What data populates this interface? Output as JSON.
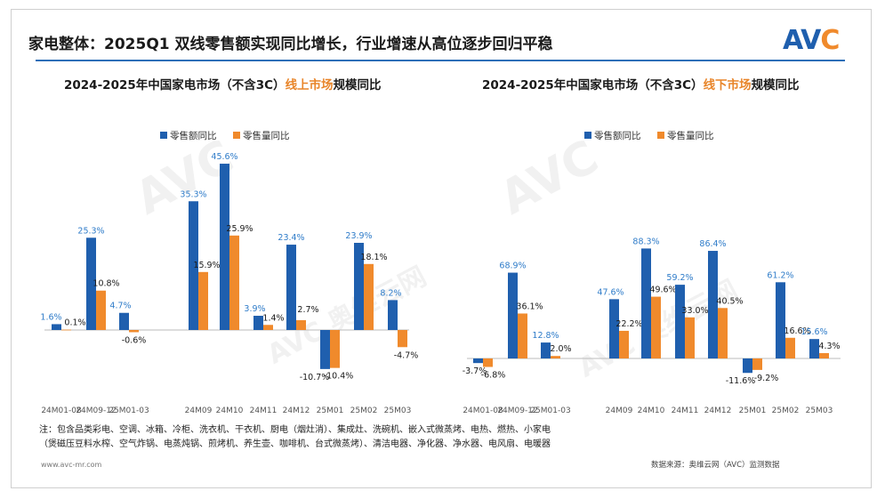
{
  "header": {
    "title": "家电整体：2025Q1 双线零售额实现同比增长，行业增速从高位逐步回归平稳",
    "logo_main": "AV",
    "logo_accent": "C"
  },
  "charts": {
    "left_title_a": "2024-2025年中国家电市场（不含3C）",
    "left_title_b": "线上市场",
    "left_title_c": "规模同比",
    "right_title_a": "2024-2025年中国家电市场（不含3C）",
    "right_title_b": "线下市场",
    "right_title_c": "规模同比"
  },
  "colors": {
    "value": "#1f5fae",
    "volume": "#f08a2c",
    "value_label": "#2f7cc9",
    "neg_label": "#1a1a1a"
  },
  "chart_data": [
    {
      "type": "bar",
      "title": "2024-2025年中国家电市场（不含3C）线上市场规模同比",
      "categories": [
        "24M01-08",
        "24M09-12",
        "25M01-03",
        "24M09",
        "24M10",
        "24M11",
        "24M12",
        "25M01",
        "25M02",
        "25M03"
      ],
      "series": [
        {
          "name": "零售额同比",
          "values": [
            1.6,
            25.3,
            4.7,
            35.3,
            45.6,
            3.9,
            23.4,
            -10.7,
            23.9,
            8.2
          ]
        },
        {
          "name": "零售量同比",
          "values": [
            0.1,
            10.8,
            -0.6,
            15.9,
            25.9,
            1.4,
            2.7,
            -10.4,
            18.1,
            -4.7
          ]
        }
      ],
      "value_labels": [
        [
          "1.6%",
          "25.3%",
          "4.7%",
          "35.3%",
          "45.6%",
          "3.9%",
          "23.4%",
          "-10.7%",
          "23.9%",
          "8.2%"
        ],
        [
          "0.1%",
          "10.8%",
          "-0.6%",
          "15.9%",
          "25.9%",
          "1.4%",
          "2.7%",
          "-10.4%",
          "18.1%",
          "-4.7%"
        ]
      ],
      "legend_position": "top-left",
      "grid": false
    },
    {
      "type": "bar",
      "title": "2024-2025年中国家电市场（不含3C）线下市场规模同比",
      "categories": [
        "24M01-08",
        "24M09-12",
        "25M01-03",
        "24M09",
        "24M10",
        "24M11",
        "24M12",
        "25M01",
        "25M02",
        "25M03"
      ],
      "series": [
        {
          "name": "零售额同比",
          "values": [
            -3.7,
            68.9,
            12.8,
            47.6,
            88.3,
            59.2,
            86.4,
            -11.6,
            61.2,
            15.6
          ]
        },
        {
          "name": "零售量同比",
          "values": [
            -6.8,
            36.1,
            2.0,
            22.2,
            49.6,
            33.0,
            40.5,
            -9.2,
            16.6,
            4.3
          ]
        }
      ],
      "value_labels": [
        [
          "-3.7%",
          "68.9%",
          "12.8%",
          "47.6%",
          "88.3%",
          "59.2%",
          "86.4%",
          "-11.6%",
          "61.2%",
          "15.6%"
        ],
        [
          "-6.8%",
          "36.1%",
          "2.0%",
          "22.2%",
          "49.6%",
          "33.0%",
          "40.5%",
          "-9.2%",
          "16.6%",
          "4.3%"
        ]
      ],
      "legend_position": "top-left",
      "grid": false
    }
  ],
  "notes": {
    "line1": "注：包含品类彩电、空调、冰箱、冷柜、洗衣机、干衣机、厨电（烟灶消）、集成灶、洗碗机、嵌入式微蒸烤、电热、燃热、小家电",
    "line2": "（煲磁压豆料水榨、空气炸锅、电蒸炖锅、煎烤机、养生壶、咖啡机、台式微蒸烤）、清洁电器、净化器、净水器、电风扇、电暖器"
  },
  "footer": {
    "website": "www.avc-mr.com",
    "source": "数据来源：奥维云网（AVC）监测数据"
  },
  "watermarks": {
    "text_a": "AVC 奥维云网",
    "text_b": "ALL VIEW CLOUD"
  }
}
